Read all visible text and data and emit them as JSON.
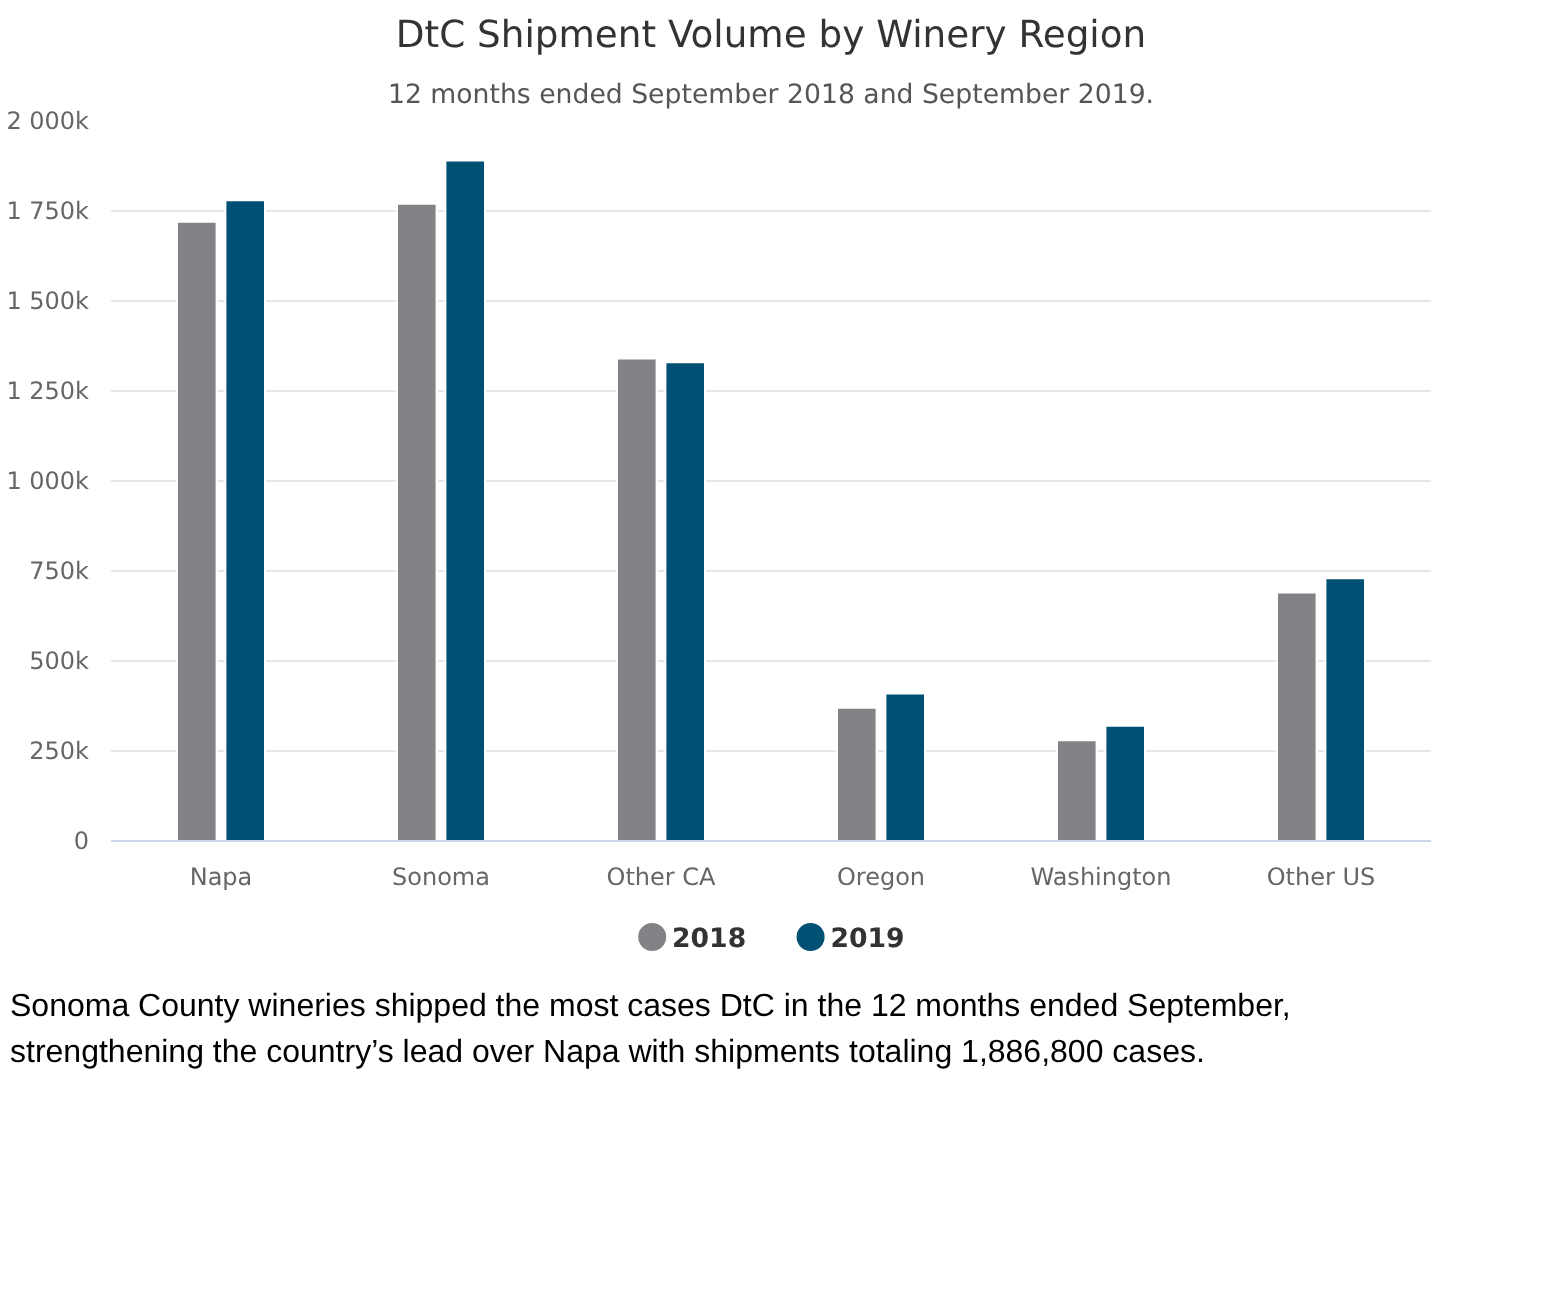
{
  "chart_data": {
    "type": "bar",
    "title": "DtC Shipment Volume by Winery Region",
    "subtitle": "12 months ended September 2018 and September 2019.",
    "categories": [
      "Napa",
      "Sonoma",
      "Other CA",
      "Oregon",
      "Washington",
      "Other US"
    ],
    "series": [
      {
        "name": "2018",
        "color": "#838387",
        "values": [
          1720,
          1770,
          1340,
          370,
          280,
          690
        ]
      },
      {
        "name": "2019",
        "color": "#005073",
        "values": [
          1780,
          1890,
          1330,
          410,
          320,
          730
        ]
      }
    ],
    "ylim": [
      0,
      2000
    ],
    "yticks": [
      {
        "value": 0,
        "label": "0"
      },
      {
        "value": 250,
        "label": "250k"
      },
      {
        "value": 500,
        "label": "500k"
      },
      {
        "value": 750,
        "label": "750k"
      },
      {
        "value": 1000,
        "label": "1 000k"
      },
      {
        "value": 1250,
        "label": "1 250k"
      },
      {
        "value": 1500,
        "label": "1 500k"
      },
      {
        "value": 1750,
        "label": "1 750k"
      },
      {
        "value": 2000,
        "label": "2 000k"
      }
    ],
    "grid": "y",
    "legend": "bottom",
    "annotations": [
      "Sonoma County wineries shipped the most cases DtC in the 12 months ended September, strengthening the country’s lead over Napa with shipments totaling 1,886,800 cases."
    ]
  }
}
